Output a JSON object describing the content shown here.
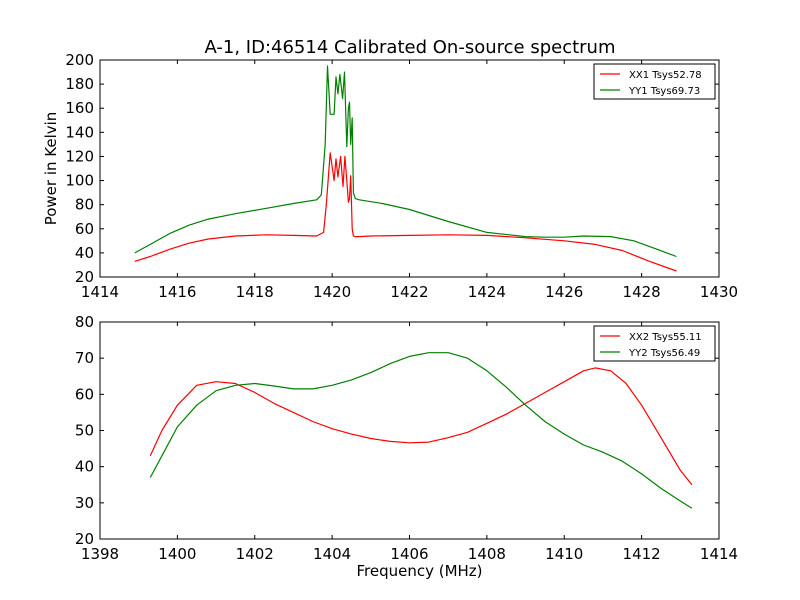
{
  "figure": {
    "title": "A-1, ID:46514 Calibrated On-source spectrum"
  },
  "chart_data": [
    {
      "type": "line",
      "title": "A-1, ID:46514 Calibrated On-source spectrum",
      "xlabel": "",
      "ylabel": "Power in Kelvin",
      "xlim": [
        1414,
        1430
      ],
      "ylim": [
        20,
        200
      ],
      "xticks": [
        "1414",
        "1416",
        "1418",
        "1420",
        "1422",
        "1424",
        "1426",
        "1428",
        "1430"
      ],
      "yticks": [
        "20",
        "40",
        "60",
        "80",
        "100",
        "120",
        "140",
        "160",
        "180",
        "200"
      ],
      "legend_position": "top-right",
      "series": [
        {
          "name": "XX1 Tsys52.78",
          "color": "#ff0000",
          "x": [
            1414.9,
            1415.3,
            1415.8,
            1416.3,
            1416.8,
            1417.5,
            1418.3,
            1419.0,
            1419.6,
            1419.78,
            1419.85,
            1419.95,
            1420.05,
            1420.1,
            1420.15,
            1420.22,
            1420.28,
            1420.33,
            1420.38,
            1420.42,
            1420.45,
            1420.48,
            1420.52,
            1420.55,
            1420.6,
            1420.7,
            1421.0,
            1422.0,
            1423.0,
            1424.0,
            1425.0,
            1426.0,
            1426.8,
            1427.5,
            1428.2,
            1428.9
          ],
          "y": [
            33,
            37,
            43,
            48,
            51.5,
            54,
            55,
            54.5,
            54,
            57,
            80,
            123,
            100,
            118,
            103,
            120,
            95,
            120,
            100,
            82,
            85,
            104,
            60,
            54,
            53.5,
            53.5,
            54,
            54.5,
            55,
            54.5,
            52.5,
            50,
            47,
            42,
            33,
            25
          ]
        },
        {
          "name": "YY1 Tsys69.73",
          "color": "#008000",
          "x": [
            1414.9,
            1415.3,
            1415.8,
            1416.3,
            1416.8,
            1417.5,
            1418.3,
            1419.0,
            1419.6,
            1419.72,
            1419.82,
            1419.88,
            1419.95,
            1420.05,
            1420.1,
            1420.15,
            1420.2,
            1420.27,
            1420.32,
            1420.38,
            1420.42,
            1420.45,
            1420.48,
            1420.52,
            1420.55,
            1420.6,
            1420.7,
            1421.3,
            1422.0,
            1423.0,
            1424.0,
            1425.0,
            1425.5,
            1426.0,
            1426.5,
            1427.2,
            1427.8,
            1428.4,
            1428.9
          ],
          "y": [
            40,
            47,
            56,
            63,
            68,
            72.5,
            77,
            81,
            84,
            88,
            130,
            195,
            155,
            155,
            186,
            172,
            188,
            168,
            190,
            128,
            160,
            165,
            130,
            152,
            90,
            85,
            84,
            81,
            76,
            66,
            57,
            53.5,
            53,
            53,
            54,
            53.5,
            50,
            43,
            37
          ]
        }
      ]
    },
    {
      "type": "line",
      "title": "",
      "xlabel": "Frequency (MHz)",
      "ylabel": "",
      "xlim": [
        1398,
        1414
      ],
      "ylim": [
        20,
        80
      ],
      "xticks": [
        "1398",
        "1400",
        "1402",
        "1404",
        "1406",
        "1408",
        "1410",
        "1412",
        "1414"
      ],
      "yticks": [
        "20",
        "30",
        "40",
        "50",
        "60",
        "70",
        "80"
      ],
      "legend_position": "top-right",
      "series": [
        {
          "name": "XX2 Tsys55.11",
          "color": "#ff0000",
          "x": [
            1399.3,
            1399.6,
            1400.0,
            1400.5,
            1401.0,
            1401.5,
            1402.0,
            1402.5,
            1403.0,
            1403.5,
            1404.0,
            1404.5,
            1405.0,
            1405.5,
            1406.0,
            1406.5,
            1407.0,
            1407.5,
            1408.0,
            1408.5,
            1409.0,
            1409.5,
            1410.0,
            1410.5,
            1410.8,
            1411.2,
            1411.6,
            1412.0,
            1412.5,
            1413.0,
            1413.3
          ],
          "y": [
            43,
            50,
            57,
            62.5,
            63.5,
            63,
            60.5,
            57.5,
            55,
            52.5,
            50.5,
            49,
            47.8,
            47,
            46.6,
            46.8,
            48,
            49.5,
            52,
            54.5,
            57.5,
            60.5,
            63.5,
            66.5,
            67.3,
            66.5,
            63,
            57,
            48,
            39,
            35
          ]
        },
        {
          "name": "YY2 Tsys56.49",
          "color": "#008000",
          "x": [
            1399.3,
            1399.6,
            1400.0,
            1400.5,
            1401.0,
            1401.5,
            1402.0,
            1402.5,
            1403.0,
            1403.5,
            1404.0,
            1404.5,
            1405.0,
            1405.5,
            1406.0,
            1406.5,
            1407.0,
            1407.5,
            1408.0,
            1408.5,
            1409.0,
            1409.5,
            1410.0,
            1410.5,
            1411.0,
            1411.5,
            1412.0,
            1412.5,
            1413.0,
            1413.3
          ],
          "y": [
            37,
            43,
            51,
            57,
            61,
            62.5,
            63,
            62.3,
            61.5,
            61.5,
            62.5,
            64,
            66,
            68.5,
            70.5,
            71.5,
            71.5,
            70,
            66.5,
            62,
            57,
            52.5,
            49,
            46,
            44,
            41.5,
            38,
            34,
            30.5,
            28.5
          ]
        }
      ]
    }
  ]
}
